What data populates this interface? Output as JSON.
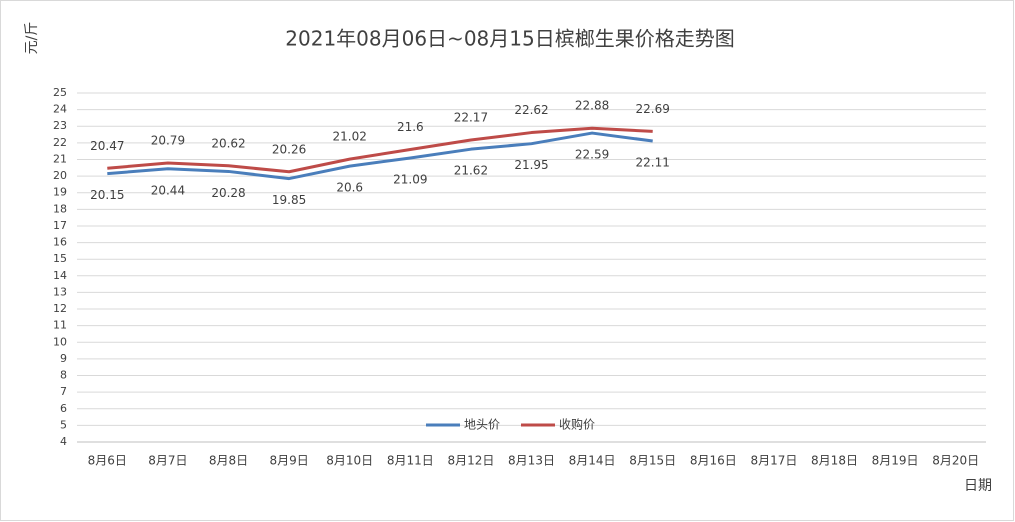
{
  "chart_data": {
    "type": "line",
    "title": "2021年08月06日~08月15日槟榔生果价格走势图",
    "y_label": "元/斤",
    "x_label": "日期",
    "categories": [
      "8月6日",
      "8月7日",
      "8月8日",
      "8月9日",
      "8月10日",
      "8月11日",
      "8月12日",
      "8月13日",
      "8月14日",
      "8月15日",
      "8月16日",
      "8月17日",
      "8月18日",
      "8月19日",
      "8月20日"
    ],
    "series": [
      {
        "name": "地头价",
        "color": "#4a7ebb",
        "values": [
          20.15,
          20.44,
          20.28,
          19.85,
          20.6,
          21.09,
          21.62,
          21.95,
          22.59,
          22.11,
          null,
          null,
          null,
          null,
          null
        ]
      },
      {
        "name": "收购价",
        "color": "#be4b48",
        "values": [
          20.47,
          20.79,
          20.62,
          20.26,
          21.02,
          21.6,
          22.17,
          22.62,
          22.88,
          22.69,
          null,
          null,
          null,
          null,
          null
        ]
      }
    ],
    "ylim": [
      4,
      25
    ],
    "yticks": [
      4,
      5,
      6,
      7,
      8,
      9,
      10,
      11,
      12,
      13,
      14,
      15,
      16,
      17,
      18,
      19,
      20,
      21,
      22,
      23,
      24,
      25
    ],
    "grid": true,
    "legend": "bottom"
  }
}
